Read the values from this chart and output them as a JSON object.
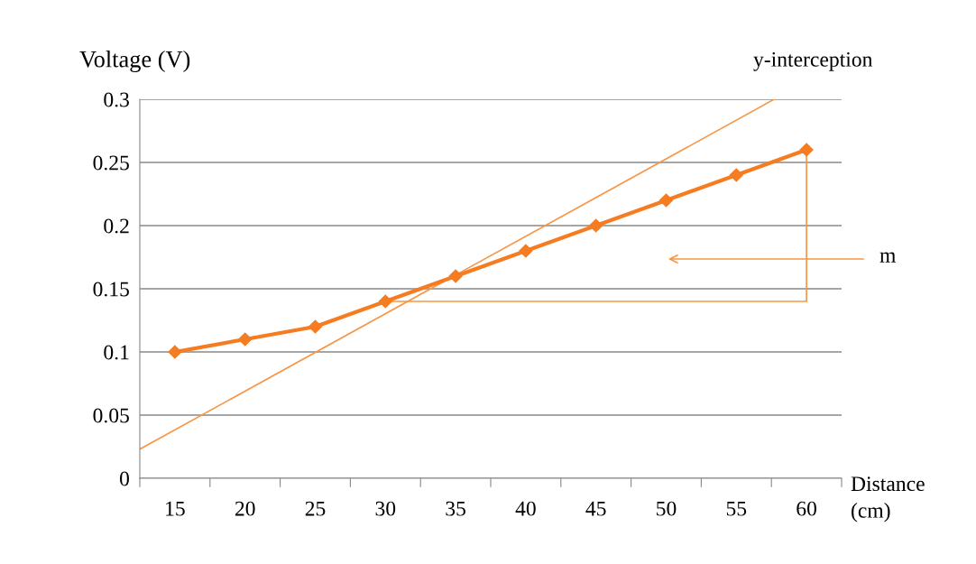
{
  "chart_data": {
    "type": "line",
    "ylabel": "Voltage (V)",
    "xlabel": "Distance\n(cm)",
    "x": [
      15,
      20,
      25,
      30,
      35,
      40,
      45,
      50,
      55,
      60
    ],
    "series": [
      {
        "color": "#f57c20",
        "values": [
          0.1,
          0.11,
          0.12,
          0.14,
          0.16,
          0.18,
          0.2,
          0.22,
          0.24,
          0.26
        ],
        "marker": "diamond"
      },
      {
        "color": "#f79646",
        "x": [
          12.5,
          57.7
        ],
        "values": [
          0.023,
          0.3
        ],
        "marker": "none"
      },
      {
        "color": "#f79646",
        "x": [
          30,
          60,
          60
        ],
        "values": [
          0.14,
          0.14,
          0.26
        ],
        "marker": "none"
      }
    ],
    "xlim": [
      12.5,
      62.5
    ],
    "xticks": [
      {
        "value": 12.5,
        "label": null
      },
      {
        "value": 15,
        "label": "15"
      },
      {
        "value": 17.5,
        "label": null
      },
      {
        "value": 20,
        "label": "20"
      },
      {
        "value": 22.5,
        "label": null
      },
      {
        "value": 25,
        "label": "25"
      },
      {
        "value": 27.5,
        "label": null
      },
      {
        "value": 30,
        "label": "30"
      },
      {
        "value": 32.5,
        "label": null
      },
      {
        "value": 35,
        "label": "35"
      },
      {
        "value": 37.5,
        "label": null
      },
      {
        "value": 40,
        "label": "40"
      },
      {
        "value": 42.5,
        "label": null
      },
      {
        "value": 45,
        "label": "45"
      },
      {
        "value": 47.5,
        "label": null
      },
      {
        "value": 50,
        "label": "50"
      },
      {
        "value": 52.5,
        "label": null
      },
      {
        "value": 55,
        "label": "55"
      },
      {
        "value": 57.5,
        "label": null
      },
      {
        "value": 60,
        "label": "60"
      },
      {
        "value": 62.5,
        "label": null
      }
    ],
    "ylim": [
      0,
      0.3
    ],
    "yticks": [
      0,
      0.05,
      0.1,
      0.15,
      0.2,
      0.25,
      0.3
    ],
    "grid": "y",
    "legend": false,
    "annotations": [
      "y-interception",
      "m"
    ]
  }
}
